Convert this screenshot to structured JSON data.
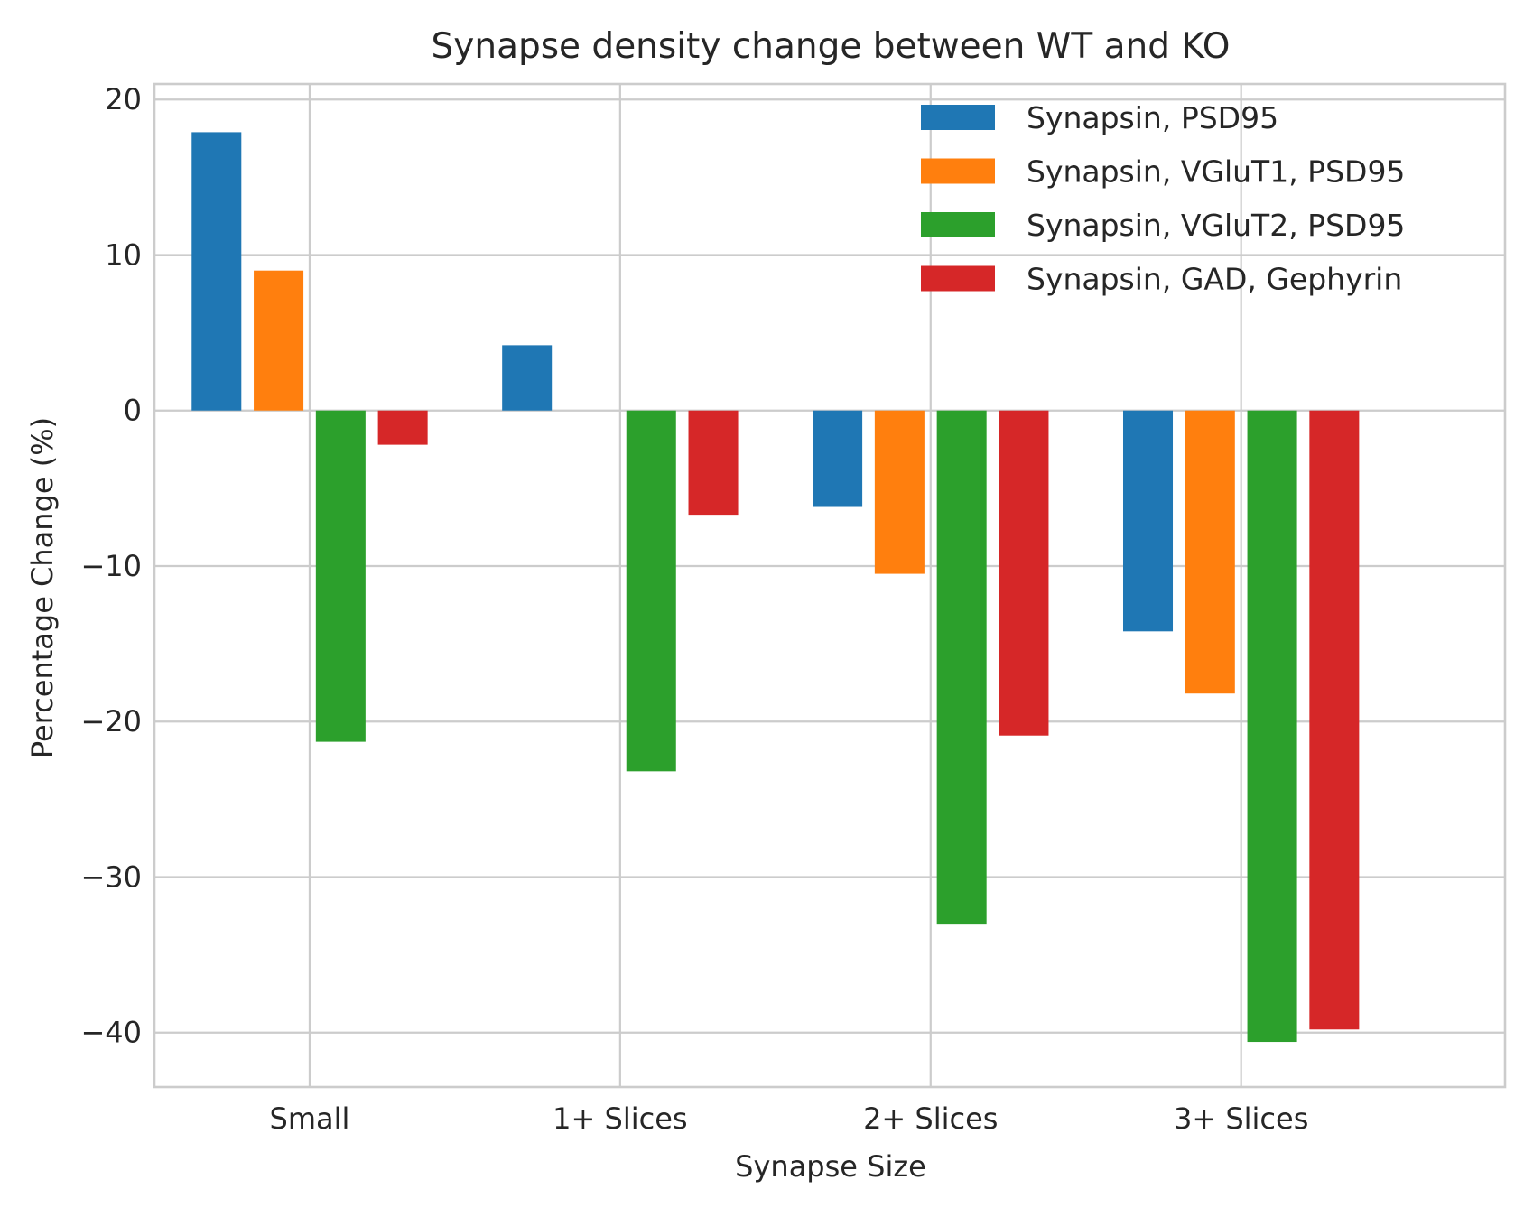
{
  "chart_data": {
    "type": "bar",
    "title": "Synapse density change between WT and KO",
    "xlabel": "Synapse Size",
    "ylabel": "Percentage Change (%)",
    "categories": [
      "Small",
      "1+ Slices",
      "2+ Slices",
      "3+ Slices"
    ],
    "ylim": [
      -43.5,
      21
    ],
    "yticks": [
      20,
      10,
      0,
      -10,
      -20,
      -30,
      -40
    ],
    "ytick_labels": [
      "20",
      "10",
      "0",
      "−10",
      "−20",
      "−30",
      "−40"
    ],
    "grid": true,
    "legend_position": "top-right",
    "series": [
      {
        "name": "Synapsin, PSD95",
        "color": "#1f77b4",
        "values": [
          17.9,
          4.2,
          -6.2,
          -14.2
        ]
      },
      {
        "name": "Synapsin, VGluT1, PSD95",
        "color": "#ff7f0e",
        "values": [
          9.0,
          0,
          -10.5,
          -18.2
        ]
      },
      {
        "name": "Synapsin, VGluT2, PSD95",
        "color": "#2ca02c",
        "values": [
          -21.3,
          -23.2,
          -33.0,
          -40.6
        ]
      },
      {
        "name": "Synapsin, GAD, Gephyrin",
        "color": "#d62728",
        "values": [
          -2.2,
          -6.7,
          -20.9,
          -39.8
        ]
      }
    ]
  }
}
